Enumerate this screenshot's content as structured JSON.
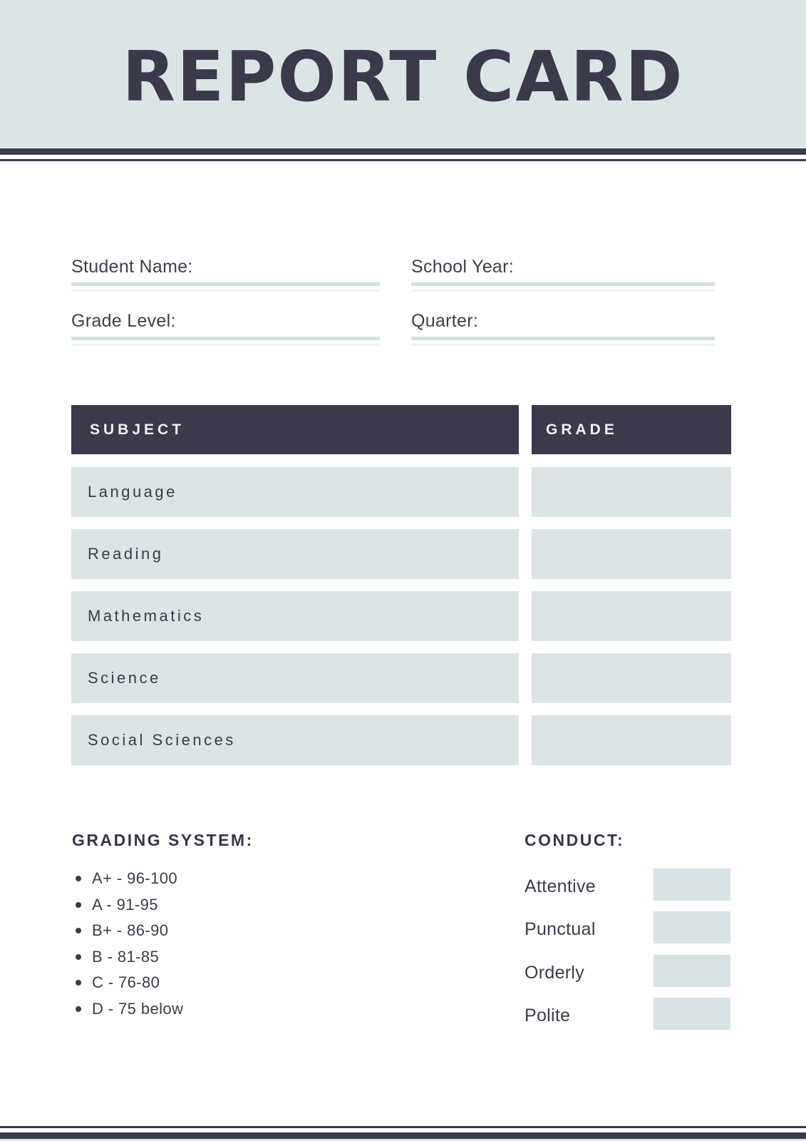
{
  "document": {
    "title": "REPORT CARD"
  },
  "colors": {
    "dark_navy": "#3b3a4b",
    "header_band": "#dce5e6",
    "row_fill": "#dce4e6",
    "field_line": "#d5e0e0",
    "conduct_box": "#d9e2e4",
    "table_header_text": "#eef2f2"
  },
  "form": {
    "fields": [
      {
        "label": "Student Name:",
        "value": ""
      },
      {
        "label": "School Year:",
        "value": ""
      },
      {
        "label": "Grade Level:",
        "value": ""
      },
      {
        "label": "Quarter:",
        "value": ""
      }
    ]
  },
  "grades_table": {
    "columns": [
      "SUBJECT",
      "GRADE"
    ],
    "rows": [
      {
        "subject": "Language",
        "grade": ""
      },
      {
        "subject": "Reading",
        "grade": ""
      },
      {
        "subject": "Mathematics",
        "grade": ""
      },
      {
        "subject": "Science",
        "grade": ""
      },
      {
        "subject": "Social Sciences",
        "grade": ""
      }
    ]
  },
  "grading_system": {
    "heading": "GRADING SYSTEM:",
    "items": [
      "A+ - 96-100",
      "A - 91-95",
      "B+ - 86-90",
      "B - 81-85",
      "C - 76-80",
      "D - 75 below"
    ]
  },
  "conduct": {
    "heading": "CONDUCT:",
    "items": [
      {
        "label": "Attentive",
        "value": ""
      },
      {
        "label": "Punctual",
        "value": ""
      },
      {
        "label": "Orderly",
        "value": ""
      },
      {
        "label": "Polite",
        "value": ""
      }
    ]
  }
}
